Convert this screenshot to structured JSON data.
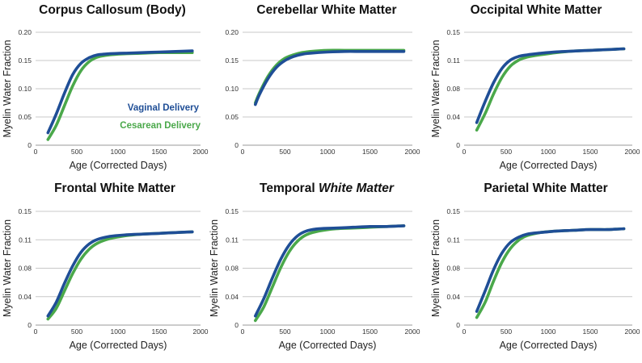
{
  "chart_data": [
    {
      "type": "line",
      "title": "Corpus Callosum (Body)",
      "xlabel": "Age (Corrected Days)",
      "ylabel": "Myelin Water Fraction",
      "xlim": [
        0,
        2000
      ],
      "ylim": [
        0,
        0.2
      ],
      "xticks": [
        "0",
        "500",
        "1000",
        "1500",
        "2000"
      ],
      "yticks": [
        "0",
        "0.05",
        "0.10",
        "0.15",
        "0.20"
      ],
      "series": [
        {
          "name": "Vaginal Delivery",
          "color": "#1f4e96",
          "x": [
            150,
            250,
            350,
            450,
            550,
            650,
            750,
            900,
            1100,
            1300,
            1500,
            1700,
            1900
          ],
          "y": [
            0.022,
            0.055,
            0.092,
            0.125,
            0.145,
            0.155,
            0.16,
            0.162,
            0.163,
            0.164,
            0.165,
            0.166,
            0.167
          ]
        },
        {
          "name": "Cesarean Delivery",
          "color": "#4aa84a",
          "x": [
            150,
            250,
            350,
            450,
            550,
            650,
            750,
            900,
            1100,
            1300,
            1500,
            1700,
            1900
          ],
          "y": [
            0.01,
            0.035,
            0.07,
            0.105,
            0.132,
            0.148,
            0.156,
            0.16,
            0.162,
            0.163,
            0.164,
            0.164,
            0.164
          ]
        }
      ],
      "legend": "inside-right"
    },
    {
      "type": "line",
      "title": "Cerebellar White Matter",
      "xlabel": "",
      "ylabel": "",
      "xlim": [
        0,
        2000
      ],
      "ylim": [
        0,
        0.2
      ],
      "xticks": [
        "0",
        "500",
        "1000",
        "1500",
        "2000"
      ],
      "yticks": [
        "0",
        "0.05",
        "0.10",
        "0.15",
        "0.20"
      ],
      "series": [
        {
          "name": "Vaginal Delivery",
          "color": "#1f4e96",
          "x": [
            150,
            200,
            300,
            400,
            500,
            600,
            700,
            800,
            1000,
            1200,
            1400,
            1600,
            1900
          ],
          "y": [
            0.072,
            0.09,
            0.118,
            0.138,
            0.15,
            0.157,
            0.161,
            0.163,
            0.165,
            0.166,
            0.166,
            0.166,
            0.166
          ]
        },
        {
          "name": "Cesarean Delivery",
          "color": "#4aa84a",
          "x": [
            150,
            200,
            300,
            400,
            500,
            600,
            700,
            800,
            1000,
            1200,
            1400,
            1600,
            1900
          ],
          "y": [
            0.075,
            0.093,
            0.122,
            0.142,
            0.154,
            0.16,
            0.164,
            0.166,
            0.168,
            0.168,
            0.168,
            0.168,
            0.168
          ]
        }
      ]
    },
    {
      "type": "line",
      "title": "Occipital White Matter",
      "xlabel": "Age (Corrected Days)",
      "ylabel": "Myelin Water Fraction",
      "xlim": [
        0,
        2000
      ],
      "ylim": [
        0,
        0.15
      ],
      "xticks": [
        "0",
        "500",
        "1000",
        "1500",
        "2000"
      ],
      "yticks": [
        "0",
        "0.04",
        "0.08",
        "0.11",
        "0.15"
      ],
      "series": [
        {
          "name": "Vaginal Delivery",
          "color": "#1f4e96",
          "x": [
            150,
            250,
            350,
            450,
            550,
            650,
            750,
            900,
            1100,
            1300,
            1500,
            1700,
            1900
          ],
          "y": [
            0.03,
            0.058,
            0.083,
            0.102,
            0.113,
            0.118,
            0.12,
            0.122,
            0.124,
            0.125,
            0.126,
            0.127,
            0.128
          ]
        },
        {
          "name": "Cesarean Delivery",
          "color": "#4aa84a",
          "x": [
            150,
            250,
            350,
            450,
            550,
            650,
            750,
            900,
            1100,
            1300,
            1500,
            1700,
            1900
          ],
          "y": [
            0.02,
            0.042,
            0.068,
            0.09,
            0.105,
            0.113,
            0.117,
            0.12,
            0.123,
            0.125,
            0.126,
            0.127,
            0.128
          ]
        }
      ]
    },
    {
      "type": "line",
      "title": "Frontal White Matter",
      "xlabel": "Age (Corrected Days)",
      "ylabel": "Myelin Water Fraction",
      "xlim": [
        0,
        2000
      ],
      "ylim": [
        0,
        0.15
      ],
      "xticks": [
        "0",
        "500",
        "1000",
        "1500",
        "2000"
      ],
      "yticks": [
        "0",
        "0.04",
        "0.08",
        "0.11",
        "0.15"
      ],
      "series": [
        {
          "name": "Vaginal Delivery",
          "color": "#1f4e96",
          "x": [
            150,
            250,
            350,
            450,
            550,
            650,
            750,
            900,
            1100,
            1300,
            1500,
            1700,
            1900
          ],
          "y": [
            0.012,
            0.03,
            0.055,
            0.078,
            0.096,
            0.107,
            0.113,
            0.117,
            0.119,
            0.12,
            0.121,
            0.122,
            0.123
          ]
        },
        {
          "name": "Cesarean Delivery",
          "color": "#4aa84a",
          "x": [
            150,
            250,
            350,
            450,
            550,
            650,
            750,
            900,
            1100,
            1300,
            1500,
            1700,
            1900
          ],
          "y": [
            0.008,
            0.022,
            0.045,
            0.068,
            0.087,
            0.1,
            0.108,
            0.114,
            0.118,
            0.12,
            0.121,
            0.122,
            0.123
          ]
        }
      ]
    },
    {
      "type": "line",
      "title": "Temporal White Matter",
      "xlabel": "Age (Corrected Days)",
      "ylabel": "Myelin Water Fraction",
      "xlim": [
        0,
        2000
      ],
      "ylim": [
        0,
        0.15
      ],
      "xticks": [
        "0",
        "500",
        "1000",
        "1500",
        "2000"
      ],
      "yticks": [
        "0",
        "0.04",
        "0.08",
        "0.11",
        "0.15"
      ],
      "series": [
        {
          "name": "Vaginal Delivery",
          "color": "#1f4e96",
          "x": [
            150,
            250,
            350,
            450,
            550,
            650,
            750,
            900,
            1100,
            1300,
            1500,
            1700,
            1900
          ],
          "y": [
            0.012,
            0.035,
            0.062,
            0.087,
            0.106,
            0.118,
            0.124,
            0.127,
            0.128,
            0.129,
            0.13,
            0.13,
            0.131
          ]
        },
        {
          "name": "Cesarean Delivery",
          "color": "#4aa84a",
          "x": [
            150,
            250,
            350,
            450,
            550,
            650,
            750,
            900,
            1100,
            1300,
            1500,
            1700,
            1900
          ],
          "y": [
            0.006,
            0.024,
            0.05,
            0.076,
            0.097,
            0.111,
            0.119,
            0.124,
            0.127,
            0.128,
            0.129,
            0.13,
            0.131
          ]
        }
      ]
    },
    {
      "type": "line",
      "title": "Parietal White Matter",
      "xlabel": "Age (Corrected Days)",
      "ylabel": "Myelin Water Fraction",
      "xlim": [
        0,
        2000
      ],
      "ylim": [
        0,
        0.15
      ],
      "xticks": [
        "0",
        "500",
        "1000",
        "1500",
        "2000"
      ],
      "yticks": [
        "0",
        "0.04",
        "0.08",
        "0.11",
        "0.15"
      ],
      "series": [
        {
          "name": "Vaginal Delivery",
          "color": "#1f4e96",
          "x": [
            150,
            250,
            350,
            450,
            550,
            650,
            750,
            900,
            1100,
            1300,
            1500,
            1700,
            1900
          ],
          "y": [
            0.018,
            0.045,
            0.073,
            0.095,
            0.109,
            0.116,
            0.12,
            0.122,
            0.124,
            0.125,
            0.126,
            0.126,
            0.127
          ]
        },
        {
          "name": "Cesarean Delivery",
          "color": "#4aa84a",
          "x": [
            150,
            250,
            350,
            450,
            550,
            650,
            750,
            900,
            1100,
            1300,
            1500,
            1700,
            1900
          ],
          "y": [
            0.01,
            0.03,
            0.058,
            0.083,
            0.101,
            0.112,
            0.118,
            0.122,
            0.124,
            0.125,
            0.126,
            0.126,
            0.127
          ]
        }
      ]
    }
  ]
}
